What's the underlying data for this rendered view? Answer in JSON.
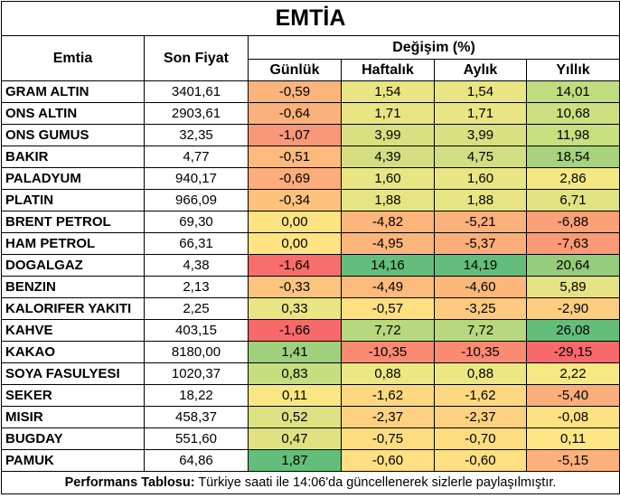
{
  "title": "EMTİA",
  "headers": {
    "commodity": "Emtia",
    "last_price": "Son Fiyat",
    "change": "Değişim (%)",
    "daily": "Günlük",
    "weekly": "Haftalık",
    "monthly": "Aylık",
    "yearly": "Yıllık"
  },
  "rows": [
    {
      "name": "GRAM ALTIN",
      "price": "3401,61",
      "daily": "-0,59",
      "weekly": "1,54",
      "monthly": "1,54",
      "yearly": "14,01",
      "colors": [
        "#fbb47c",
        "#e9e583",
        "#e9e583",
        "#bfdc7e"
      ]
    },
    {
      "name": "ONS ALTIN",
      "price": "2903,61",
      "daily": "-0,64",
      "weekly": "1,71",
      "monthly": "1,71",
      "yearly": "10,68",
      "colors": [
        "#fbb17b",
        "#e8e583",
        "#e8e583",
        "#cde07f"
      ]
    },
    {
      "name": "ONS GUMUS",
      "price": "32,35",
      "daily": "-1,07",
      "weekly": "3,99",
      "monthly": "3,99",
      "yearly": "11,98",
      "colors": [
        "#f8977a",
        "#d9e081",
        "#d9e081",
        "#c8de7f"
      ]
    },
    {
      "name": "BAKIR",
      "price": "4,77",
      "daily": "-0,51",
      "weekly": "4,39",
      "monthly": "4,75",
      "yearly": "18,54",
      "colors": [
        "#fcba7d",
        "#d4de81",
        "#d3dd81",
        "#a6d37c"
      ]
    },
    {
      "name": "PALADYUM",
      "price": "940,17",
      "daily": "-0,69",
      "weekly": "1,60",
      "monthly": "1,60",
      "yearly": "2,86",
      "colors": [
        "#fbad7b",
        "#e8e583",
        "#e8e583",
        "#f4e884"
      ]
    },
    {
      "name": "PLATIN",
      "price": "966,09",
      "daily": "-0,34",
      "weekly": "1,88",
      "monthly": "1,88",
      "yearly": "6,71",
      "colors": [
        "#fdc37d",
        "#e6e483",
        "#e6e483",
        "#e1e282"
      ]
    },
    {
      "name": "BRENT PETROL",
      "price": "69,30",
      "daily": "0,00",
      "weekly": "-4,82",
      "monthly": "-5,21",
      "yearly": "-6,88",
      "colors": [
        "#fee382",
        "#fcb57b",
        "#fcb07b",
        "#fba077"
      ]
    },
    {
      "name": "HAM PETROL",
      "price": "66,31",
      "daily": "0,00",
      "weekly": "-4,95",
      "monthly": "-5,37",
      "yearly": "-7,63",
      "colors": [
        "#fee382",
        "#fcb57b",
        "#fcae7a",
        "#fa9a76"
      ]
    },
    {
      "name": "DOGALGAZ",
      "price": "4,38",
      "daily": "-1,64",
      "weekly": "14,16",
      "monthly": "14,19",
      "yearly": "20,64",
      "colors": [
        "#f86e6c",
        "#63be7b",
        "#63be7b",
        "#95cd7c"
      ]
    },
    {
      "name": "BENZIN",
      "price": "2,13",
      "daily": "-0,33",
      "weekly": "-4,49",
      "monthly": "-4,60",
      "yearly": "5,89",
      "colors": [
        "#fdc47e",
        "#fcba7c",
        "#fcb87b",
        "#e5e383"
      ]
    },
    {
      "name": "KALORIFER YAKITI",
      "price": "2,25",
      "daily": "0,33",
      "weekly": "-0,57",
      "monthly": "-3,25",
      "yearly": "-2,90",
      "colors": [
        "#eae583",
        "#fee081",
        "#fdc97e",
        "#fdcd7f"
      ]
    },
    {
      "name": "KAHVE",
      "price": "403,15",
      "daily": "-1,66",
      "weekly": "7,72",
      "monthly": "7,72",
      "yearly": "26,08",
      "colors": [
        "#f8696b",
        "#b6d87e",
        "#b6d87e",
        "#63be7b"
      ]
    },
    {
      "name": "KAKAO",
      "price": "8180,00",
      "daily": "1,41",
      "weekly": "-10,35",
      "monthly": "-10,35",
      "yearly": "-29,15",
      "colors": [
        "#9fd07d",
        "#fa8a72",
        "#fa8a72",
        "#f8696b"
      ]
    },
    {
      "name": "SOYA FASULYESI",
      "price": "1020,37",
      "daily": "0,83",
      "weekly": "0,88",
      "monthly": "0,88",
      "yearly": "2,22",
      "colors": [
        "#c7de80",
        "#ece683",
        "#ece683",
        "#f6e984"
      ]
    },
    {
      "name": "SEKER",
      "price": "18,22",
      "daily": "0,11",
      "weekly": "-1,62",
      "monthly": "-1,62",
      "yearly": "-5,40",
      "colors": [
        "#f9e783",
        "#fed880",
        "#fed880",
        "#fcae7a"
      ]
    },
    {
      "name": "MISIR",
      "price": "458,37",
      "daily": "0,52",
      "weekly": "-2,37",
      "monthly": "-2,37",
      "yearly": "-0,08",
      "colors": [
        "#dde282",
        "#fdd17f",
        "#fdd17f",
        "#fee182"
      ]
    },
    {
      "name": "BUGDAY",
      "price": "551,60",
      "daily": "0,47",
      "weekly": "-0,75",
      "monthly": "-0,70",
      "yearly": "0,11",
      "colors": [
        "#e0e282",
        "#fedd81",
        "#fedd81",
        "#fde683"
      ]
    },
    {
      "name": "PAMUK",
      "price": "64,86",
      "daily": "1,87",
      "weekly": "-0,60",
      "monthly": "-0,60",
      "yearly": "-5,15",
      "colors": [
        "#63be7b",
        "#fedf81",
        "#fedf81",
        "#fcb07b"
      ]
    }
  ],
  "footer": {
    "label": "Performans Tablosu:",
    "text": " Türkiye saati ile 14:06'da güncellenerek sizlerle paylaşılmıştır."
  }
}
